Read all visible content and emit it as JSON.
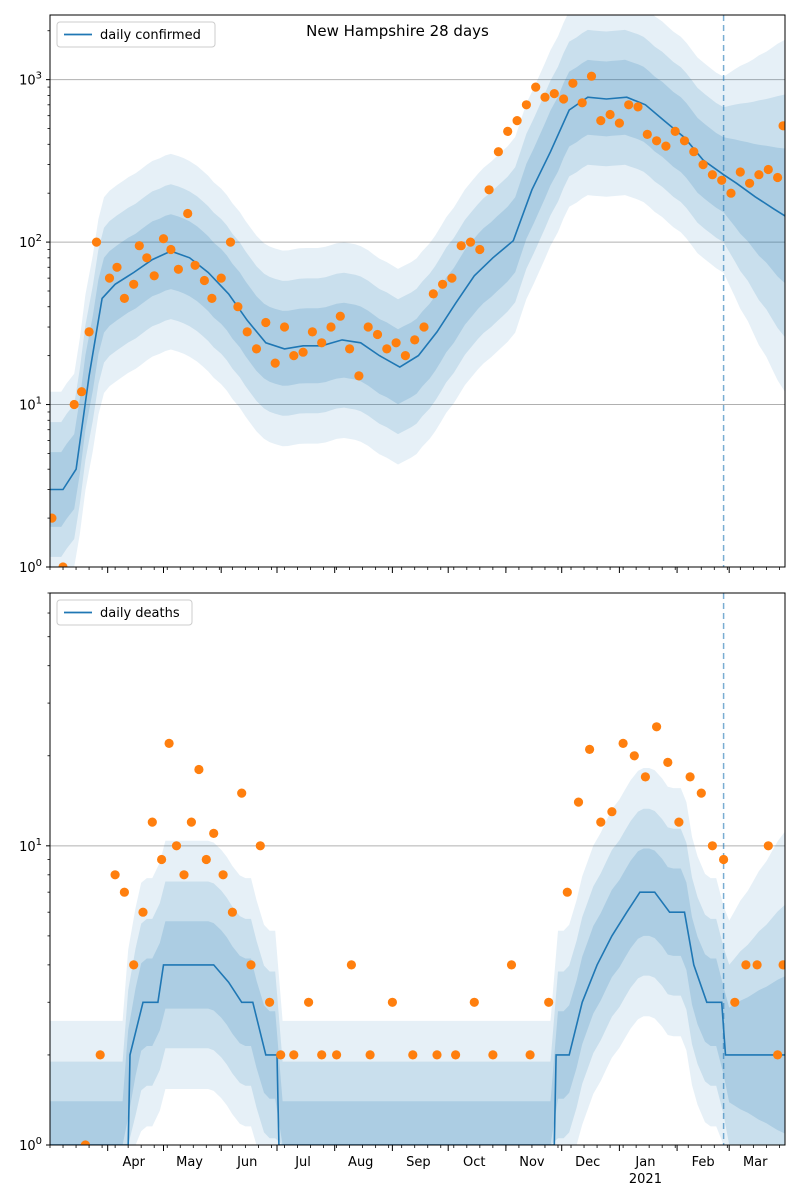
{
  "chart_data": [
    {
      "type": "line",
      "title": "New Hampshire 28 days",
      "yscale": "log",
      "ylim": [
        1,
        2500
      ],
      "xlim": [
        "2020-03-01",
        "2021-03-31"
      ],
      "grid": "y-major",
      "legend_placement": "top-left",
      "yticks": [
        {
          "value": 1,
          "label": "10^0"
        },
        {
          "value": 10,
          "label": "10^1"
        },
        {
          "value": 100,
          "label": "10^2"
        },
        {
          "value": 1000,
          "label": "10^3"
        }
      ],
      "colors": {
        "line": "#1f77b4",
        "points": "#ff7f0e",
        "band": "#1f77b4",
        "marker_line": "#1f77b4"
      },
      "marker_date": "2021-02-26",
      "series": [
        {
          "name": "daily confirmed",
          "kind": "line",
          "x": [
            "2020-03-01",
            "2020-03-08",
            "2020-03-15",
            "2020-03-22",
            "2020-03-29",
            "2020-04-05",
            "2020-04-15",
            "2020-04-25",
            "2020-05-05",
            "2020-05-15",
            "2020-05-25",
            "2020-06-05",
            "2020-06-15",
            "2020-06-25",
            "2020-07-05",
            "2020-07-15",
            "2020-07-25",
            "2020-08-05",
            "2020-08-15",
            "2020-08-25",
            "2020-09-05",
            "2020-09-15",
            "2020-09-25",
            "2020-10-05",
            "2020-10-15",
            "2020-10-25",
            "2020-11-05",
            "2020-11-15",
            "2020-11-25",
            "2020-12-05",
            "2020-12-15",
            "2020-12-25",
            "2021-01-05",
            "2021-01-15",
            "2021-01-25",
            "2021-02-05",
            "2021-02-15",
            "2021-02-26",
            "2021-03-05",
            "2021-03-15",
            "2021-03-25",
            "2021-03-31"
          ],
          "y": [
            3,
            3,
            4,
            15,
            45,
            55,
            65,
            78,
            88,
            80,
            65,
            48,
            33,
            24,
            22,
            23,
            23,
            25,
            24,
            20,
            17,
            20,
            28,
            42,
            62,
            80,
            102,
            210,
            360,
            650,
            780,
            760,
            780,
            700,
            560,
            440,
            320,
            260,
            230,
            190,
            160,
            145
          ]
        },
        {
          "name": "",
          "kind": "points",
          "x": [
            "2020-03-02",
            "2020-03-08",
            "2020-03-14",
            "2020-03-18",
            "2020-03-22",
            "2020-03-26",
            "2020-04-02",
            "2020-04-06",
            "2020-04-10",
            "2020-04-15",
            "2020-04-18",
            "2020-04-22",
            "2020-04-26",
            "2020-05-01",
            "2020-05-05",
            "2020-05-09",
            "2020-05-14",
            "2020-05-18",
            "2020-05-23",
            "2020-05-27",
            "2020-06-01",
            "2020-06-06",
            "2020-06-10",
            "2020-06-15",
            "2020-06-20",
            "2020-06-25",
            "2020-06-30",
            "2020-07-05",
            "2020-07-10",
            "2020-07-15",
            "2020-07-20",
            "2020-07-25",
            "2020-07-30",
            "2020-08-04",
            "2020-08-09",
            "2020-08-14",
            "2020-08-19",
            "2020-08-24",
            "2020-08-29",
            "2020-09-03",
            "2020-09-08",
            "2020-09-13",
            "2020-09-18",
            "2020-09-23",
            "2020-09-28",
            "2020-10-03",
            "2020-10-08",
            "2020-10-13",
            "2020-10-18",
            "2020-10-23",
            "2020-10-28",
            "2020-11-02",
            "2020-11-07",
            "2020-11-12",
            "2020-11-17",
            "2020-11-22",
            "2020-11-27",
            "2020-12-02",
            "2020-12-07",
            "2020-12-12",
            "2020-12-17",
            "2020-12-22",
            "2020-12-27",
            "2021-01-01",
            "2021-01-06",
            "2021-01-11",
            "2021-01-16",
            "2021-01-21",
            "2021-01-26",
            "2021-01-31",
            "2021-02-05",
            "2021-02-10",
            "2021-02-15",
            "2021-02-20",
            "2021-02-25",
            "2021-03-02",
            "2021-03-07",
            "2021-03-12",
            "2021-03-17",
            "2021-03-22",
            "2021-03-27",
            "2021-03-30"
          ],
          "y": [
            2,
            1,
            10,
            12,
            28,
            100,
            60,
            70,
            45,
            55,
            95,
            80,
            62,
            105,
            90,
            68,
            150,
            72,
            58,
            45,
            60,
            100,
            40,
            28,
            22,
            32,
            18,
            30,
            20,
            21,
            28,
            24,
            30,
            35,
            22,
            15,
            30,
            27,
            22,
            24,
            20,
            25,
            30,
            48,
            55,
            60,
            95,
            100,
            90,
            210,
            360,
            480,
            560,
            700,
            900,
            780,
            820,
            760,
            950,
            720,
            1050,
            560,
            610,
            540,
            700,
            680,
            460,
            420,
            390,
            480,
            420,
            360,
            300,
            260,
            240,
            200,
            270,
            230,
            260,
            280,
            250,
            520
          ]
        }
      ]
    },
    {
      "type": "line",
      "title": "",
      "yscale": "log",
      "ylim": [
        1,
        70
      ],
      "xlim": [
        "2020-03-01",
        "2021-03-31"
      ],
      "grid": "y-major",
      "legend_placement": "top-left",
      "yticks": [
        {
          "value": 1,
          "label": "10^0"
        },
        {
          "value": 10,
          "label": "10^1"
        }
      ],
      "xticks": [
        {
          "date": "2020-04-01",
          "label": "Apr"
        },
        {
          "date": "2020-05-01",
          "label": "May"
        },
        {
          "date": "2020-06-01",
          "label": "Jun"
        },
        {
          "date": "2020-07-01",
          "label": "Jul"
        },
        {
          "date": "2020-08-01",
          "label": "Aug"
        },
        {
          "date": "2020-09-01",
          "label": "Sep"
        },
        {
          "date": "2020-10-01",
          "label": "Oct"
        },
        {
          "date": "2020-11-01",
          "label": "Nov"
        },
        {
          "date": "2020-12-01",
          "label": "Dec"
        },
        {
          "date": "2021-01-01",
          "label": "Jan",
          "sublabel": "2021"
        },
        {
          "date": "2021-02-01",
          "label": "Feb"
        },
        {
          "date": "2021-03-01",
          "label": "Mar"
        }
      ],
      "marker_date": "2021-02-26",
      "series": [
        {
          "name": "daily deaths",
          "kind": "line",
          "x": [
            "2020-03-01",
            "2020-04-12",
            "2020-04-13",
            "2020-04-20",
            "2020-04-28",
            "2020-05-01",
            "2020-05-10",
            "2020-05-20",
            "2020-05-28",
            "2020-06-05",
            "2020-06-12",
            "2020-06-18",
            "2020-06-25",
            "2020-07-01",
            "2020-07-02",
            "2020-08-10",
            "2020-09-01",
            "2020-10-01",
            "2020-11-10",
            "2020-11-27",
            "2020-11-28",
            "2020-12-05",
            "2020-12-12",
            "2020-12-20",
            "2020-12-28",
            "2021-01-05",
            "2021-01-12",
            "2021-01-20",
            "2021-01-28",
            "2021-02-05",
            "2021-02-10",
            "2021-02-17",
            "2021-02-25",
            "2021-02-27",
            "2021-03-31"
          ],
          "y": [
            1,
            1,
            2,
            3,
            3,
            4,
            4,
            4,
            4,
            3.5,
            3,
            3,
            2,
            2,
            1,
            1,
            1,
            1,
            1,
            1,
            2,
            2,
            3,
            4,
            5,
            6,
            7,
            7,
            6,
            6,
            4,
            3,
            3,
            2,
            2
          ]
        },
        {
          "name": "",
          "kind": "points",
          "x": [
            "2020-03-20",
            "2020-03-28",
            "2020-04-05",
            "2020-04-10",
            "2020-04-15",
            "2020-04-20",
            "2020-04-25",
            "2020-04-30",
            "2020-05-04",
            "2020-05-08",
            "2020-05-12",
            "2020-05-16",
            "2020-05-20",
            "2020-05-24",
            "2020-05-28",
            "2020-06-02",
            "2020-06-07",
            "2020-06-12",
            "2020-06-17",
            "2020-06-22",
            "2020-06-27",
            "2020-07-03",
            "2020-07-10",
            "2020-07-18",
            "2020-07-25",
            "2020-08-02",
            "2020-08-10",
            "2020-08-20",
            "2020-09-01",
            "2020-09-12",
            "2020-09-25",
            "2020-10-05",
            "2020-10-15",
            "2020-10-25",
            "2020-11-04",
            "2020-11-14",
            "2020-11-24",
            "2020-12-04",
            "2020-12-10",
            "2020-12-16",
            "2020-12-22",
            "2020-12-28",
            "2021-01-03",
            "2021-01-09",
            "2021-01-15",
            "2021-01-21",
            "2021-01-27",
            "2021-02-02",
            "2021-02-08",
            "2021-02-14",
            "2021-02-20",
            "2021-02-26",
            "2021-03-04",
            "2021-03-10",
            "2021-03-16",
            "2021-03-22",
            "2021-03-27",
            "2021-03-30"
          ],
          "y": [
            1,
            2,
            8,
            7,
            4,
            6,
            12,
            9,
            22,
            10,
            8,
            12,
            18,
            9,
            11,
            8,
            6,
            15,
            4,
            10,
            3,
            2,
            2,
            3,
            2,
            2,
            4,
            2,
            3,
            2,
            2,
            2,
            3,
            2,
            4,
            2,
            3,
            7,
            14,
            21,
            12,
            13,
            22,
            20,
            17,
            25,
            19,
            12,
            17,
            15,
            10,
            9,
            3,
            4,
            4,
            10,
            2,
            4
          ]
        }
      ]
    }
  ]
}
